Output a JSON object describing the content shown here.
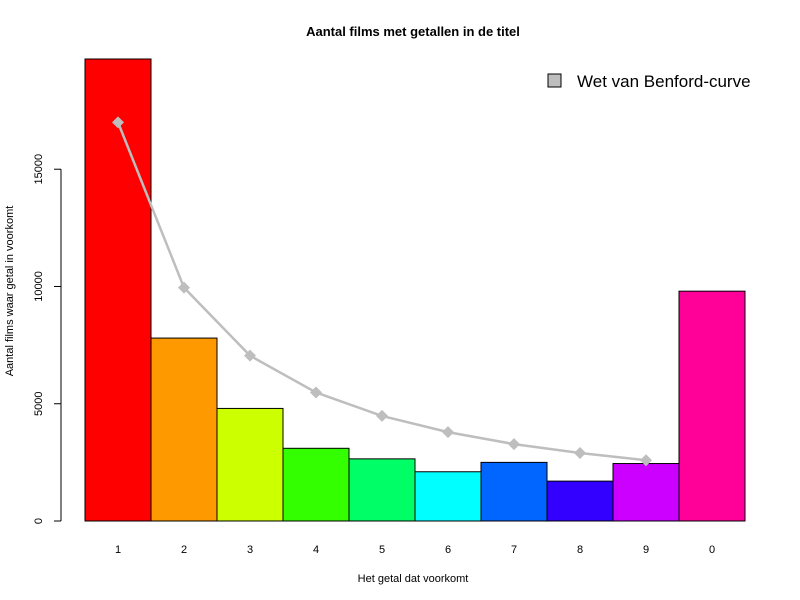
{
  "chart_data": {
    "type": "bar",
    "title": "Aantal films met getallen in de titel",
    "xlabel": "Het getal dat voorkomt",
    "ylabel": "Aantal films waar getal in voorkomt",
    "categories": [
      "1",
      "2",
      "3",
      "4",
      "5",
      "6",
      "7",
      "8",
      "9",
      "0"
    ],
    "values": [
      19700,
      7800,
      4800,
      3100,
      2650,
      2100,
      2500,
      1700,
      2450,
      9800
    ],
    "bar_colors": [
      "#ff0000",
      "#ff9900",
      "#ccff00",
      "#33ff00",
      "#00ff66",
      "#00ffff",
      "#0066ff",
      "#3300ff",
      "#cc00ff",
      "#ff0099"
    ],
    "yticks": [
      0,
      5000,
      10000,
      15000
    ],
    "ylim": [
      0,
      19700
    ],
    "grid": false,
    "overlay_line": {
      "name": "Wet van Benford-curve",
      "color": "#bebebe",
      "marker": "diamond",
      "categories": [
        "1",
        "2",
        "3",
        "4",
        "5",
        "6",
        "7",
        "8",
        "9"
      ],
      "values": [
        17000,
        9950,
        7050,
        5480,
        4480,
        3790,
        3280,
        2900,
        2590
      ]
    },
    "legend": {
      "placement": "top-right",
      "entries": [
        {
          "label": "Wet van Benford-curve",
          "color": "#bebebe"
        }
      ]
    }
  }
}
